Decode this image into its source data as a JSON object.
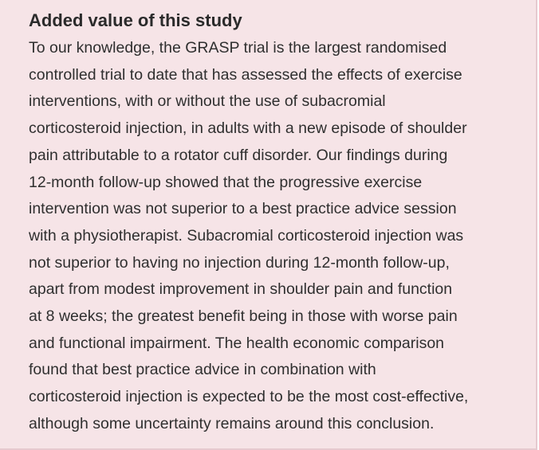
{
  "panel": {
    "heading": "Added value of this study",
    "lines": [
      "To our knowledge, the GRASP trial is the largest randomised",
      "controlled trial to date that has assessed the effects of exercise",
      "interventions, with or without the use of subacromial",
      "corticosteroid injection, in adults with a new episode of shoulder",
      "pain attributable to a rotator cuff disorder. Our findings during",
      "12-month follow-up showed that the progressive exercise",
      "intervention was not superior to a best practice advice session",
      "with a physiotherapist. Subacromial corticosteroid injection was",
      "not superior to having no injection during 12-month follow-up,",
      "apart from modest improvement in shoulder pain and function",
      "at 8 weeks; the greatest benefit being in those with worse pain",
      "and functional impairment. The health economic comparison",
      "found that best practice advice in combination with",
      "corticosteroid injection is expected to be the most cost-effective,",
      "although some uncertainty remains around this conclusion."
    ]
  }
}
